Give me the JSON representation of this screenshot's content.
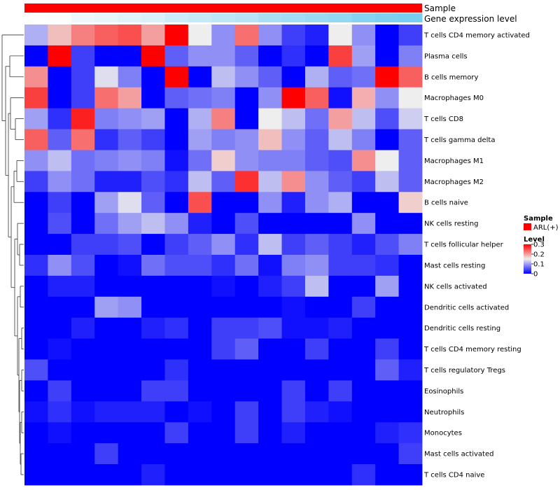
{
  "chart_data": {
    "type": "heatmap",
    "title": "",
    "annotation_rows": [
      "Sample",
      "Gene expression level"
    ],
    "sample_annotation_color": "#ff0000",
    "expression_annotation_colors": [
      "#ffffff",
      "#fbfdfe",
      "#f4fafd",
      "#eef8fc",
      "#e7f6fb",
      "#e0f3fb",
      "#d9f1fa",
      "#d2eef9",
      "#cbecf8",
      "#c4e9f8",
      "#bde7f7",
      "#b6e4f6",
      "#afe2f5",
      "#a8dff5",
      "#a1ddf4",
      "#9adaf3",
      "#93d8f2",
      "#8cd5f2",
      "#85d3f1",
      "#7ed0f0",
      "#77cef0"
    ],
    "rows": [
      "T cells CD4 memory activated",
      "Plasma cells",
      "B cells memory",
      "Macrophages M0",
      "T cells CD8",
      "T cells gamma delta",
      "Macrophages M1",
      "Macrophages M2",
      "B cells naive",
      "NK cells resting",
      "T cells follicular helper",
      "Mast cells resting",
      "NK cells activated",
      "Dendritic cells activated",
      "Dendritic cells resting",
      "T cells CD4 memory resting",
      "T cells regulatory  Tregs",
      "Eosinophils",
      "Neutrophils",
      "Monocytes",
      "Mast cells activated",
      "T cells CD4 naive"
    ],
    "values": [
      [
        0.11,
        0.18,
        0.22,
        0.24,
        0.25,
        0.2,
        0.3,
        0.15,
        0.09,
        0.23,
        0.09,
        0.04,
        0.02,
        0.15,
        0.09,
        0.0,
        0.04
      ],
      [
        0.0,
        0.3,
        0.04,
        0.0,
        0.0,
        0.3,
        0.06,
        0.09,
        0.09,
        0.06,
        0.0,
        0.03,
        0.0,
        0.26,
        0.1,
        0.0,
        0.08
      ],
      [
        0.21,
        0.0,
        0.04,
        0.14,
        0.08,
        0.0,
        0.3,
        0.0,
        0.12,
        0.09,
        0.06,
        0.0,
        0.11,
        0.06,
        0.07,
        0.3,
        0.24
      ],
      [
        0.26,
        0.0,
        0.04,
        0.23,
        0.2,
        0.0,
        0.06,
        0.07,
        0.08,
        0.0,
        0.09,
        0.3,
        0.24,
        0.01,
        0.19,
        0.09,
        0.15
      ],
      [
        0.1,
        0.03,
        0.28,
        0.08,
        0.09,
        0.1,
        0.0,
        0.11,
        0.22,
        0.0,
        0.15,
        0.12,
        0.07,
        0.2,
        0.12,
        0.05,
        0.13
      ],
      [
        0.24,
        0.06,
        0.23,
        0.03,
        0.06,
        0.04,
        0.0,
        0.1,
        0.08,
        0.09,
        0.18,
        0.09,
        0.06,
        0.12,
        0.08,
        0.0,
        0.06
      ],
      [
        0.09,
        0.12,
        0.07,
        0.08,
        0.09,
        0.08,
        0.01,
        0.07,
        0.17,
        0.09,
        0.08,
        0.08,
        0.06,
        0.05,
        0.21,
        0.15,
        0.06
      ],
      [
        0.04,
        0.09,
        0.07,
        0.02,
        0.02,
        0.05,
        0.03,
        0.12,
        0.06,
        0.27,
        0.12,
        0.21,
        0.09,
        0.06,
        0.04,
        0.12,
        0.06
      ],
      [
        0.0,
        0.04,
        0.0,
        0.1,
        0.14,
        0.06,
        0.0,
        0.25,
        0.0,
        0.0,
        0.09,
        0.02,
        0.09,
        0.11,
        0.0,
        0.0,
        0.17
      ],
      [
        0.0,
        0.05,
        0.0,
        0.07,
        0.1,
        0.12,
        0.09,
        0.02,
        0.0,
        0.05,
        0.0,
        0.0,
        0.0,
        0.0,
        0.09,
        0.0,
        0.0
      ],
      [
        0.0,
        0.0,
        0.04,
        0.04,
        0.05,
        0.0,
        0.04,
        0.06,
        0.09,
        0.03,
        0.12,
        0.04,
        0.06,
        0.04,
        0.02,
        0.05,
        0.08
      ],
      [
        0.03,
        0.09,
        0.05,
        0.0,
        0.01,
        0.07,
        0.05,
        0.05,
        0.03,
        0.07,
        0.01,
        0.08,
        0.09,
        0.04,
        0.04,
        0.03,
        0.0
      ],
      [
        0.0,
        0.02,
        0.02,
        0.0,
        0.0,
        0.0,
        0.0,
        0.0,
        0.01,
        0.0,
        0.02,
        0.04,
        0.12,
        0.0,
        0.0,
        0.1,
        0.0
      ],
      [
        0.0,
        0.0,
        0.0,
        0.1,
        0.09,
        0.0,
        0.0,
        0.0,
        0.0,
        0.0,
        0.0,
        0.01,
        0.0,
        0.0,
        0.04,
        0.0,
        0.0
      ],
      [
        0.0,
        0.0,
        0.02,
        0.0,
        0.0,
        0.02,
        0.03,
        0.0,
        0.04,
        0.04,
        0.05,
        0.01,
        0.01,
        0.02,
        0.0,
        0.0,
        0.0
      ],
      [
        0.0,
        0.01,
        0.0,
        0.0,
        0.0,
        0.0,
        0.0,
        0.0,
        0.04,
        0.06,
        0.0,
        0.0,
        0.04,
        0.0,
        0.0,
        0.04,
        0.0
      ],
      [
        0.05,
        0.0,
        0.0,
        0.0,
        0.0,
        0.0,
        0.03,
        0.0,
        0.0,
        0.0,
        0.0,
        0.0,
        0.0,
        0.0,
        0.0,
        0.06,
        0.02
      ],
      [
        0.0,
        0.04,
        0.0,
        0.0,
        0.0,
        0.04,
        0.04,
        0.0,
        0.0,
        0.0,
        0.0,
        0.04,
        0.0,
        0.04,
        0.0,
        0.0,
        0.0
      ],
      [
        0.01,
        0.03,
        0.01,
        0.02,
        0.02,
        0.02,
        0.0,
        0.01,
        0.0,
        0.04,
        0.0,
        0.04,
        0.02,
        0.01,
        0.0,
        0.0,
        0.0
      ],
      [
        0.0,
        0.01,
        0.0,
        0.0,
        0.0,
        0.0,
        0.04,
        0.0,
        0.0,
        0.04,
        0.0,
        0.02,
        0.0,
        0.0,
        0.0,
        0.02,
        0.03
      ],
      [
        0.0,
        0.0,
        0.0,
        0.04,
        0.0,
        0.0,
        0.0,
        0.0,
        0.0,
        0.0,
        0.0,
        0.0,
        0.0,
        0.0,
        0.0,
        0.0,
        0.04
      ],
      [
        0.0,
        0.0,
        0.0,
        0.0,
        0.0,
        0.02,
        0.0,
        0.0,
        0.0,
        0.0,
        0.0,
        0.0,
        0.0,
        0.0,
        0.03,
        0.0,
        0.0
      ]
    ],
    "color_scale": {
      "min": 0,
      "mid": 0.15,
      "max": 0.3,
      "low": "#0000ff",
      "midcolor": "#eeeeee",
      "high": "#ff0000"
    },
    "legend": {
      "sample_title": "Sample",
      "sample_item": "ARL(+)",
      "level_title": "Level",
      "level_ticks": [
        "0.3",
        "0.2",
        "0.1",
        "0"
      ]
    },
    "dendrogram": "row dendrogram (left side)"
  }
}
